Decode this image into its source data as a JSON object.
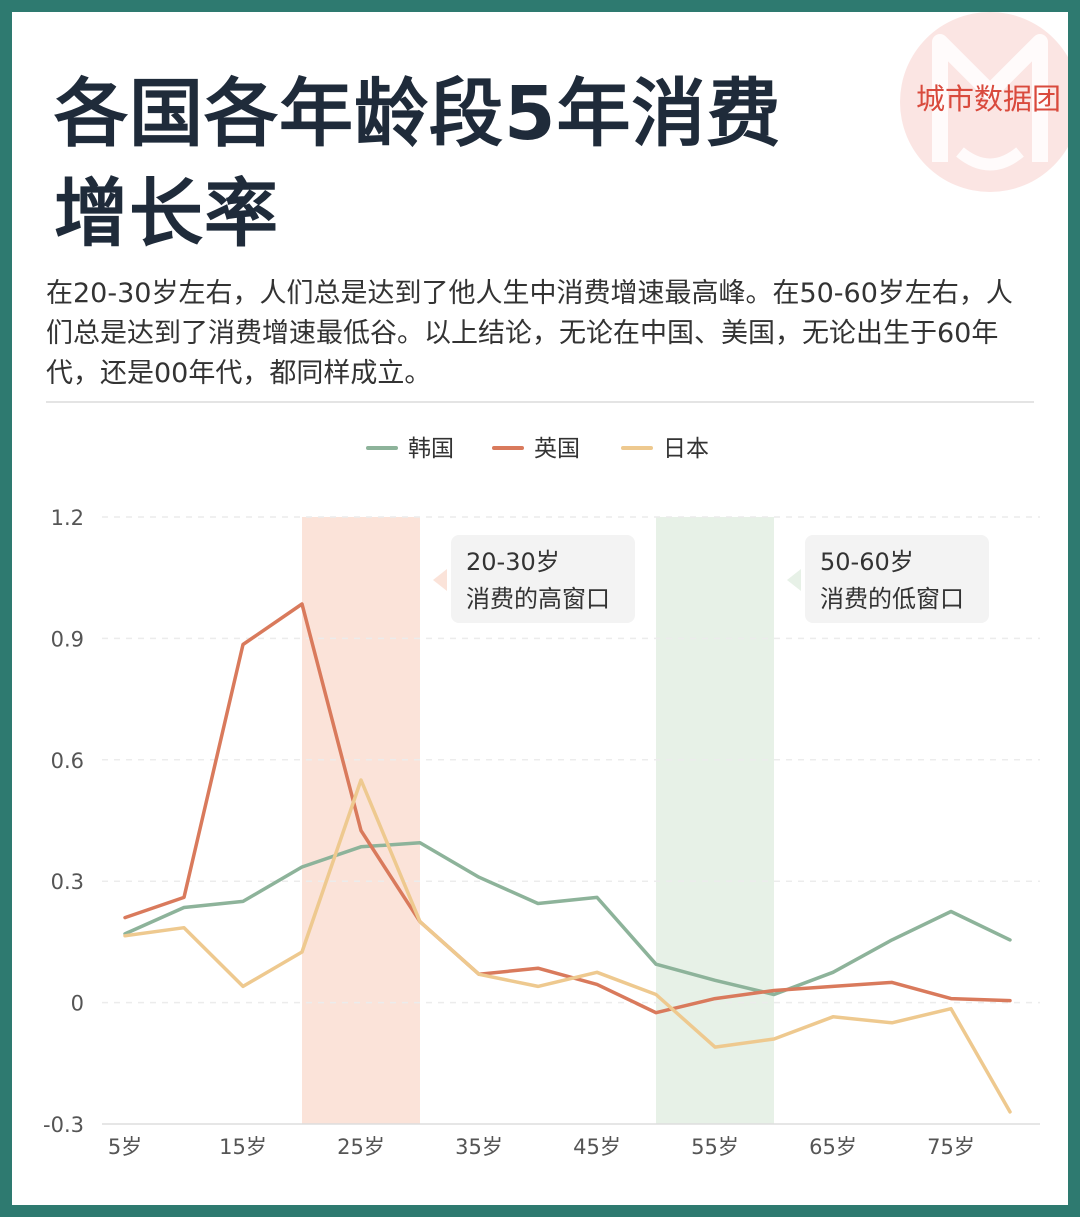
{
  "title": "各国各年龄段5年消费增长率",
  "brand": "城市数据团",
  "description": "在20-30岁左右，人们总是达到了他人生中消费增速最高峰。在50-60岁左右，人们总是达到了消费增速最低谷。以上结论，无论在中国、美国，无论出生于60年代，还是00年代，都同样成立。",
  "colors": {
    "frame": "#2e7a70",
    "korea": "#8db39a",
    "uk": "#d97a5c",
    "japan": "#eec98f",
    "high_band": "#fbe3d9",
    "low_band": "#e7f1e7"
  },
  "chart_data": {
    "type": "line",
    "legend": [
      "韩国",
      "英国",
      "日本"
    ],
    "legend_position": "top-center",
    "x": [
      5,
      10,
      15,
      20,
      25,
      30,
      35,
      40,
      45,
      50,
      55,
      60,
      65,
      70,
      75,
      80
    ],
    "x_tick_values": [
      5,
      15,
      25,
      35,
      45,
      55,
      65,
      75
    ],
    "x_tick_labels": [
      "5岁",
      "15岁",
      "25岁",
      "35岁",
      "45岁",
      "55岁",
      "65岁",
      "75岁"
    ],
    "y_ticks": [
      "1.2",
      "0.9",
      "0.6",
      "0.3",
      "0",
      "-0.3"
    ],
    "y_tick_values": [
      1.2,
      0.9,
      0.6,
      0.3,
      0,
      -0.3
    ],
    "ylim": [
      -0.3,
      1.2
    ],
    "grid": true,
    "series": [
      {
        "name": "韩国",
        "values": [
          0.17,
          0.235,
          0.25,
          0.335,
          0.385,
          0.395,
          0.31,
          0.245,
          0.26,
          0.095,
          0.055,
          0.02,
          0.075,
          0.155,
          0.225,
          0.155
        ]
      },
      {
        "name": "英国",
        "values": [
          0.21,
          0.26,
          0.885,
          0.985,
          0.425,
          0.2,
          0.07,
          0.085,
          0.045,
          -0.025,
          0.01,
          0.03,
          0.04,
          0.05,
          0.01,
          0.005
        ]
      },
      {
        "name": "日本",
        "values": [
          0.165,
          0.185,
          0.04,
          0.125,
          0.55,
          0.2,
          0.07,
          0.04,
          0.075,
          0.02,
          -0.11,
          -0.09,
          -0.035,
          -0.05,
          -0.015,
          -0.27
        ]
      }
    ],
    "bands": [
      {
        "from": 20,
        "to": 30,
        "line1": "20-30岁",
        "line2": "消费的高窗口",
        "color": "#fbe3d9"
      },
      {
        "from": 50,
        "to": 60,
        "line1": "50-60岁",
        "line2": "消费的低窗口",
        "color": "#e7f1e7"
      }
    ]
  }
}
